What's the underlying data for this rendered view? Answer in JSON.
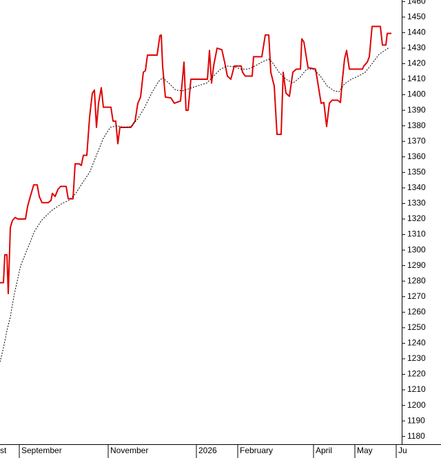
{
  "chart_data": {
    "type": "line",
    "series": [
      {
        "color": "#e00000",
        "style": "solid",
        "x": [
          0,
          2.5,
          3.5,
          5,
          6,
          7.5,
          9,
          11,
          13,
          18.5,
          20,
          22,
          24.5,
          27,
          28.5,
          30.5,
          35,
          37,
          38,
          40,
          42,
          44,
          48,
          49.5,
          53,
          54.5,
          57.5,
          59,
          60.5,
          63,
          65,
          67,
          68.5,
          70,
          71.5,
          73.5,
          75,
          80.5,
          82,
          84,
          85.5,
          87,
          95,
          98,
          100,
          102,
          104,
          105.5,
          107,
          114,
          116,
          117,
          118,
          120,
          124,
          126.5,
          131,
          133.5,
          135,
          136.5,
          138.5,
          150.5,
          152,
          153.5,
          155,
          157.5,
          161,
          163,
          165,
          167.5,
          170,
          175,
          176,
          178,
          183,
          184,
          190,
          192.5,
          195,
          196.5,
          199,
          201,
          204,
          205.5,
          207.5,
          210,
          212.5,
          215,
          218,
          219,
          220.5,
          223.5,
          229,
          231,
          233,
          235,
          237,
          239,
          241,
          245,
          247,
          248.5,
          250,
          251.5,
          253.5,
          263,
          264,
          266.5,
          268,
          270,
          276,
          277.5,
          280,
          281,
          284
        ],
        "values": [
          1279,
          1279,
          1297,
          1297,
          1272,
          1314.5,
          1319,
          1321,
          1320,
          1320,
          1328,
          1334.5,
          1342,
          1342,
          1334.5,
          1330.5,
          1330.5,
          1332,
          1336.5,
          1334.5,
          1339,
          1341,
          1341,
          1333,
          1333,
          1355.5,
          1355.5,
          1354.5,
          1361,
          1361,
          1385.5,
          1401,
          1403,
          1379,
          1394.5,
          1404.5,
          1392,
          1392,
          1383,
          1383,
          1368.5,
          1379,
          1379,
          1383,
          1394.5,
          1398.5,
          1414.5,
          1415.5,
          1425.5,
          1425.5,
          1438,
          1438.5,
          1418.5,
          1398.5,
          1398,
          1394.5,
          1396,
          1421,
          1390,
          1390,
          1410,
          1410,
          1428.5,
          1407.5,
          1418.5,
          1430,
          1429,
          1421,
          1412,
          1410,
          1418.5,
          1418.5,
          1414.5,
          1412,
          1412,
          1424.5,
          1424.5,
          1438.5,
          1438.5,
          1414.5,
          1405.5,
          1374.5,
          1374.5,
          1414.5,
          1401,
          1399,
          1414.5,
          1416.5,
          1416.5,
          1436,
          1434,
          1417.5,
          1416.5,
          1405.5,
          1394.5,
          1395,
          1379.5,
          1394.5,
          1396.5,
          1396.5,
          1395,
          1410,
          1423,
          1428.5,
          1416.5,
          1416.5,
          1418.5,
          1421,
          1424.5,
          1444,
          1444,
          1432,
          1432,
          1439.5,
          1439.5
        ]
      },
      {
        "color": "#000000",
        "style": "dotted",
        "x": [
          0,
          2.5,
          5,
          7.5,
          10,
          15,
          20,
          25,
          30,
          37.5,
          45,
          50,
          55,
          60,
          65,
          70,
          75,
          80,
          85,
          90,
          95,
          100,
          105,
          110,
          115,
          118,
          122.5,
          127.5,
          132.5,
          137.5,
          142.5,
          150,
          155,
          160,
          165,
          170,
          175,
          180,
          185,
          190,
          195,
          197.5,
          202.5,
          207.5,
          212.5,
          217.5,
          222.5,
          227.5,
          232.5,
          237.5,
          242.5,
          246,
          250,
          255,
          260,
          265,
          270,
          275,
          280,
          282.5
        ],
        "values": [
          1228,
          1237,
          1248,
          1257,
          1270,
          1290,
          1301,
          1312,
          1319,
          1325.5,
          1330,
          1332,
          1336.5,
          1343.5,
          1350,
          1361,
          1372,
          1379,
          1380,
          1379,
          1379.5,
          1384.5,
          1392,
          1401,
          1408.5,
          1411,
          1407.5,
          1403,
          1402.5,
          1404,
          1405.5,
          1407.5,
          1412,
          1416.5,
          1418.5,
          1418,
          1416.5,
          1416.5,
          1418.5,
          1421,
          1423,
          1421,
          1414.5,
          1410,
          1407.5,
          1411,
          1416.5,
          1416.5,
          1412,
          1405.5,
          1402.5,
          1402,
          1407,
          1410,
          1412,
          1414.5,
          1420,
          1426,
          1429,
          1430.5
        ]
      }
    ],
    "xlim": [
      0,
      291.5
    ],
    "xticks": [
      {
        "value": -1.5,
        "label": "st"
      },
      {
        "value": 14,
        "label": "September"
      },
      {
        "value": 78.5,
        "label": "November"
      },
      {
        "value": 142.5,
        "label": "2026"
      },
      {
        "value": 172.5,
        "label": "February"
      },
      {
        "value": 227.5,
        "label": "April"
      },
      {
        "value": 257.5,
        "label": "May"
      },
      {
        "value": 287.5,
        "label": "Ju"
      }
    ],
    "ylim": [
      1175,
      1461
    ],
    "yticks": [
      1180,
      1190,
      1200,
      1210,
      1220,
      1230,
      1240,
      1250,
      1260,
      1270,
      1280,
      1290,
      1300,
      1310,
      1320,
      1330,
      1340,
      1350,
      1360,
      1370,
      1380,
      1390,
      1400,
      1410,
      1420,
      1430,
      1440,
      1450,
      1460
    ],
    "y_axis_side": "right"
  }
}
